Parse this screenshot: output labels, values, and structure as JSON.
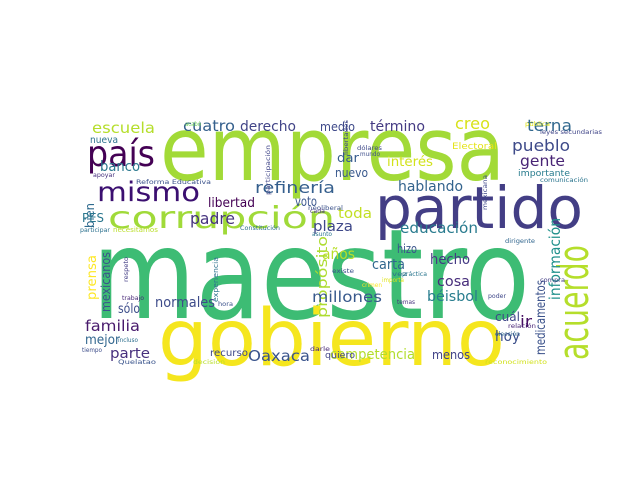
{
  "words": [
    "maestro",
    "empresa",
    "partido",
    "gobierno",
    "acuerdo",
    "corrupción",
    "país",
    "mismo",
    "escuela",
    "nueva",
    "cuatro",
    "derecho",
    "medio",
    "término",
    "creo",
    "terna",
    "pueblo",
    "gente",
    "banco",
    "padre",
    "refinería",
    "libertad",
    "voto",
    "toda",
    "hablando",
    "educación",
    "plaza",
    "años",
    "propósito",
    "hizo",
    "hecho",
    "carta",
    "cosa",
    "millones",
    "béisbol",
    "información",
    "medicamentos",
    "ir",
    "hoy",
    "cuál",
    "normales",
    "sólo",
    "familia",
    "mejor",
    "parte",
    "Oaxaca",
    "competencia",
    "menos",
    "prensa",
    "mexicanos",
    "bien",
    "PES",
    "dar",
    "nuevo",
    "interés",
    "Electoral",
    "importante",
    "recurso",
    "quiero",
    "acabó",
    "apoyar",
    "Reforma Educativa",
    "Constitución",
    "participar",
    "necesitamos",
    "respeto",
    "experiencia",
    "hora",
    "trabajo",
    "incluso",
    "tiempo",
    "dólares",
    "mundo",
    "libertades",
    "participación",
    "neoliberal",
    "cada",
    "asunto",
    "existe",
    "compra",
    "dirigente",
    "vez",
    "importa",
    "crimen",
    "práctica",
    "temas",
    "poder",
    "elección",
    "relación",
    "darle",
    "decisión",
    "reconocimiento",
    "pública",
    "leyes secundarias",
    "comunicación",
    "mexicana",
    "Quelatao"
  ]
}
